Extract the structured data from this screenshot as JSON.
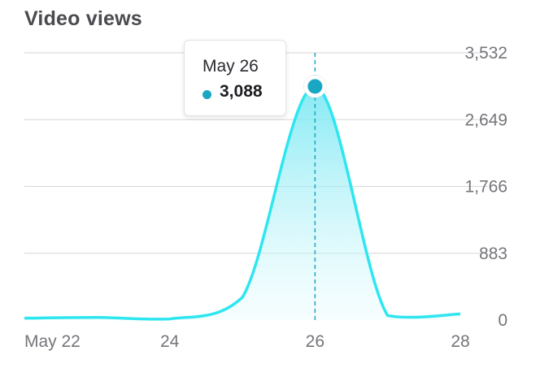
{
  "header": {
    "title": "Video views"
  },
  "tooltip": {
    "date": "May 26",
    "value": "3,088"
  },
  "colors": {
    "line": "#2ee6f0",
    "fill": "#8aecf5",
    "point": "#1aa7c4",
    "grid": "#d6d6da",
    "text": "#75757b"
  },
  "chart_data": {
    "type": "area",
    "title": "Video views",
    "xlabel": "",
    "ylabel": "",
    "x_tick_labels": [
      "May 22",
      "24",
      "26",
      "28"
    ],
    "y_tick_labels": [
      "0",
      "883",
      "1,766",
      "2,649",
      "3,532"
    ],
    "ylim": [
      0,
      3532
    ],
    "grid": true,
    "series": [
      {
        "x": [
          "May 22",
          "May 23",
          "May 24",
          "May 25",
          "May 26",
          "May 27",
          "May 28"
        ],
        "values": [
          25,
          35,
          15,
          300,
          3088,
          60,
          80
        ]
      }
    ],
    "highlight": {
      "x": "May 26",
      "value": 3088
    }
  }
}
